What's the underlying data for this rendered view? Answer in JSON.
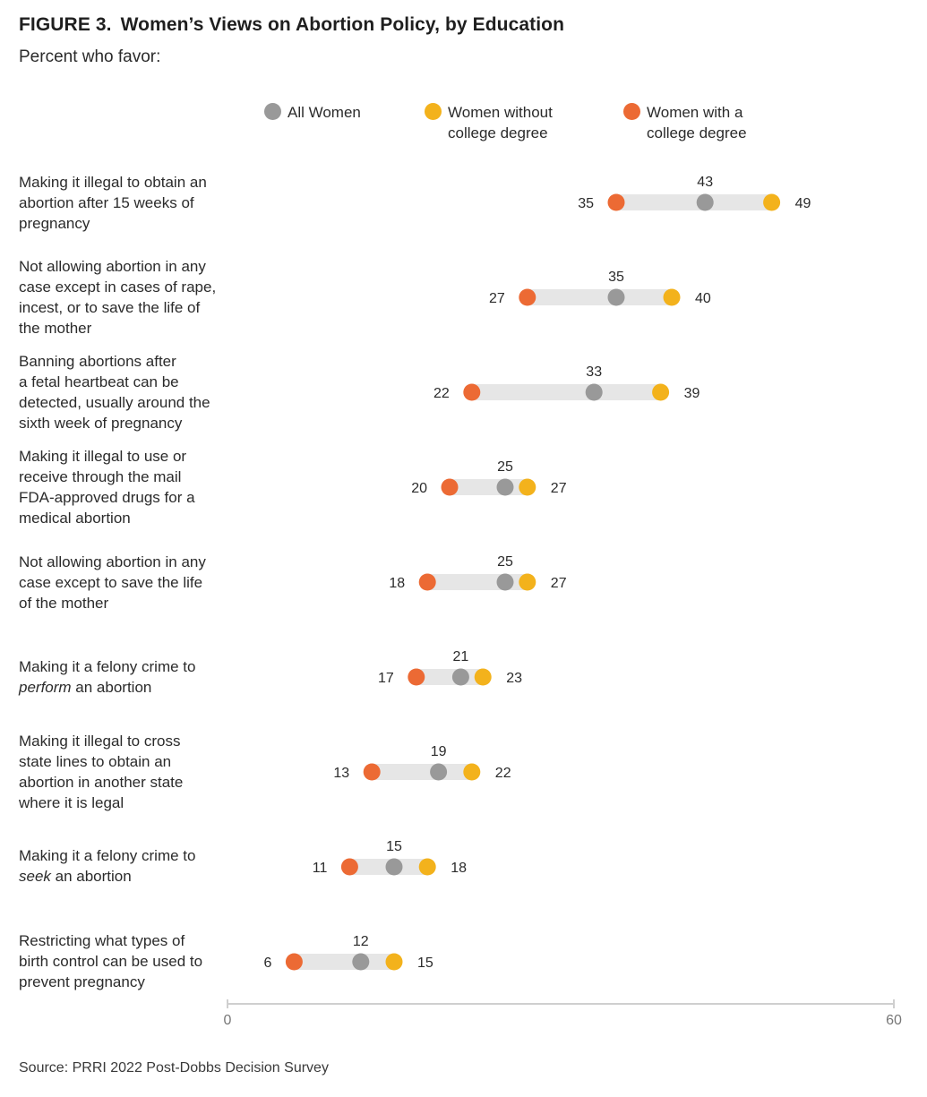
{
  "figure": {
    "number": "FIGURE 3.",
    "title": "Women’s Views on Abortion Policy, by Education",
    "subtitle": "Percent who favor:"
  },
  "legend": [
    {
      "label": "All Women",
      "color": "#999999"
    },
    {
      "label": "Women without college degree",
      "color": "#f3b21c"
    },
    {
      "label": "Women with a college degree",
      "color": "#ec6a34"
    }
  ],
  "colors": {
    "all": "#999999",
    "no_college": "#f3b21c",
    "college": "#ec6a34",
    "bar": "#e6e6e6",
    "axis": "#cfcfcf"
  },
  "source": "Source:  PRRI 2022 Post-Dobbs Decision Survey",
  "chart_data": {
    "type": "dot-range",
    "xlim": [
      0,
      60
    ],
    "x_ticks": [
      "0",
      "60"
    ],
    "series": [
      {
        "name": "All Women",
        "key": "all"
      },
      {
        "name": "Women without college degree",
        "key": "no_college"
      },
      {
        "name": "Women with a college degree",
        "key": "college"
      }
    ],
    "items": [
      {
        "label": [
          "Making it illegal to obtain an",
          "abortion after 15 weeks of",
          "pregnancy"
        ],
        "college": 35,
        "all": 43,
        "no_college": 49
      },
      {
        "label": [
          "Not allowing abortion in any",
          "case except in cases of rape,",
          "incest, or to save the life of",
          "the mother"
        ],
        "college": 27,
        "all": 35,
        "no_college": 40
      },
      {
        "label": [
          "Banning abortions after",
          "a fetal heartbeat can be",
          "detected, usually around the",
          "sixth week of pregnancy"
        ],
        "college": 22,
        "all": 33,
        "no_college": 39
      },
      {
        "label": [
          "Making it illegal to use or",
          "receive through the mail",
          "FDA-approved drugs for a",
          "medical abortion"
        ],
        "college": 20,
        "all": 25,
        "no_college": 27
      },
      {
        "label": [
          "Not allowing abortion in any",
          "case except to save the life",
          "of the mother"
        ],
        "college": 18,
        "all": 25,
        "no_college": 27
      },
      {
        "label": [
          "Making it a felony crime to",
          "*perform* an abortion"
        ],
        "college": 17,
        "all": 21,
        "no_college": 23
      },
      {
        "label": [
          "Making it illegal to cross",
          "state lines to obtain an",
          "abortion in another state",
          "where it is legal"
        ],
        "college": 13,
        "all": 19,
        "no_college": 22
      },
      {
        "label": [
          "Making it a felony crime to",
          "*seek* an abortion"
        ],
        "college": 11,
        "all": 15,
        "no_college": 18
      },
      {
        "label": [
          "Restricting what types of",
          "birth control can be used to",
          "prevent pregnancy"
        ],
        "college": 6,
        "all": 12,
        "no_college": 15
      }
    ]
  }
}
